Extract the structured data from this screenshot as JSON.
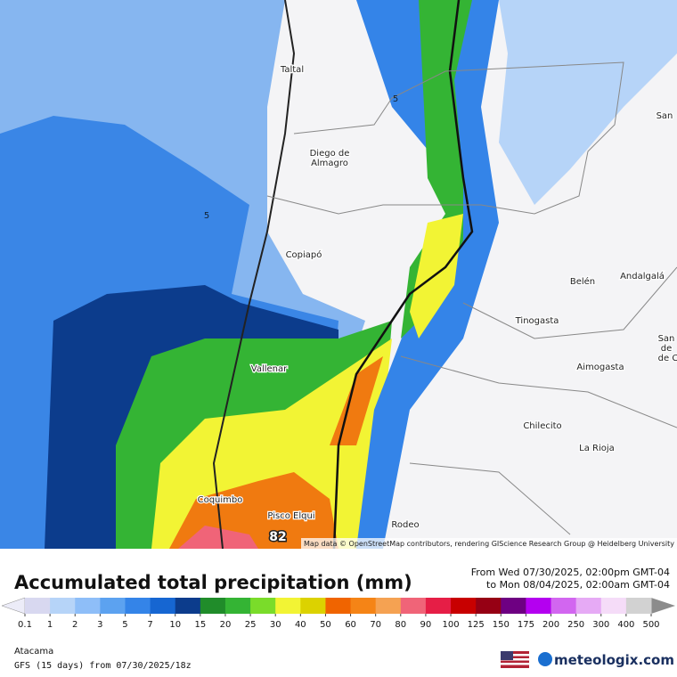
{
  "map": {
    "cities": [
      "Taltal",
      "Diego de",
      "Almagro",
      "Copiapó",
      "Vallenar",
      "Coquimbo",
      "Pisco Elqui",
      "Rodeo",
      "Belén",
      "Andalgalá",
      "Tinogasta",
      "Aimogasta",
      "Chilecito",
      "La Rioja",
      "San",
      "San",
      "de",
      "de C"
    ],
    "contour_labels": [
      "5",
      "5"
    ],
    "max_label": "82",
    "attribution": "Map data © OpenStreetMap contributors, rendering GIScience Research Group @ Heidelberg University"
  },
  "legend": {
    "title": "Accumulated total precipitation (mm)",
    "period_from": "From Wed 07/30/2025, 02:00pm GMT-04",
    "period_to": "to Mon 08/04/2025, 02:00am GMT-04",
    "ticks": [
      0.1,
      1,
      2,
      3,
      5,
      7,
      10,
      15,
      20,
      25,
      30,
      40,
      50,
      60,
      70,
      80,
      90,
      100,
      125,
      150,
      175,
      200,
      250,
      300,
      400,
      500
    ],
    "colors": [
      "#d8d8f0",
      "#b6d4f8",
      "#8ebef8",
      "#5ca2f0",
      "#3484e8",
      "#1666d2",
      "#0c3c8c",
      "#208c2a",
      "#34b434",
      "#7adc2a",
      "#f2f434",
      "#dcd200",
      "#f06400",
      "#f58416",
      "#f5a252",
      "#f06478",
      "#e61e46",
      "#c80000",
      "#960014",
      "#6e0082",
      "#b400f0",
      "#d266f0",
      "#e6aaf5",
      "#f5dcf8",
      "#d2d2d2"
    ],
    "under_color": "#ececf8",
    "over_color": "#8c8c8c"
  },
  "footer": {
    "region": "Atacama",
    "model": "GFS (15 days) from  07/30/2025/18z",
    "brand": "meteologix.com"
  }
}
